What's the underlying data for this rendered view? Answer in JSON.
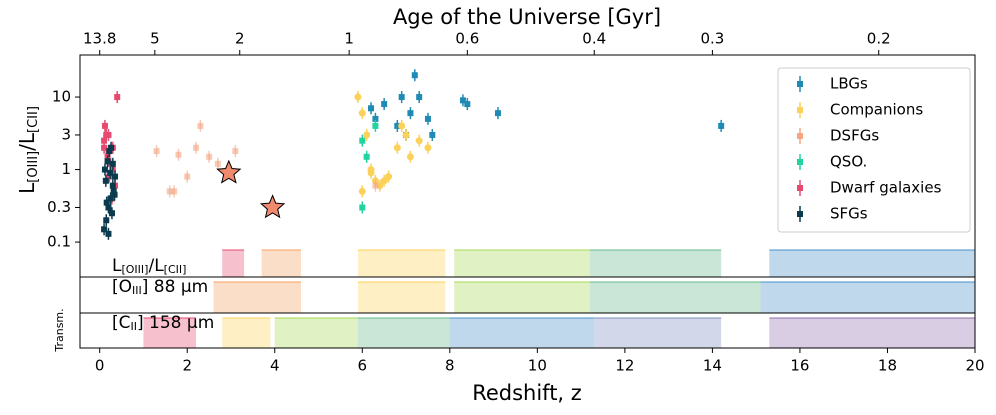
{
  "chart_data": {
    "type": "scatter",
    "title": "Age of the Universe [Gyr]",
    "x_label": "Redshift, z",
    "y_label": [
      "L",
      "[OIII]",
      "/L",
      "[CII]"
    ],
    "transmission_label": "Transm.",
    "xlim": [
      -0.45,
      20
    ],
    "ylim": [
      0.033,
      38
    ],
    "log_y": true,
    "xticks": [
      0,
      2,
      4,
      6,
      8,
      10,
      12,
      14,
      16,
      18,
      20
    ],
    "yticks": [
      0.1,
      0.3,
      1,
      3,
      10
    ],
    "top_ticks": [
      {
        "value": 0,
        "label": "13.8"
      },
      {
        "value": 1.26,
        "label": "5"
      },
      {
        "value": 3.2,
        "label": "2"
      },
      {
        "value": 5.7,
        "label": "1"
      },
      {
        "value": 8.4,
        "label": "0.6"
      },
      {
        "value": 11.3,
        "label": "0.4"
      },
      {
        "value": 14.0,
        "label": "0.3"
      },
      {
        "value": 17.8,
        "label": "0.2"
      }
    ],
    "legend": "upper right",
    "series": [
      {
        "name": "LBGs",
        "color": "#1f8bb4",
        "marker": "square",
        "x": [
          6.3,
          6.5,
          6.9,
          7.1,
          7.2,
          7.3,
          7.5,
          7.6,
          8.3,
          8.4,
          9.1,
          14.2,
          6.2,
          6.8,
          7.0
        ],
        "values": [
          5,
          8,
          10,
          6,
          20,
          10,
          5,
          3,
          9,
          8,
          6,
          4,
          7,
          4,
          3
        ]
      },
      {
        "name": "Companions",
        "color": "#fcd15a",
        "marker": "circle",
        "x": [
          5.9,
          6.0,
          6.1,
          6.2,
          6.3,
          6.4,
          6.6,
          6.8,
          7.0,
          7.1,
          7.3,
          7.5,
          6.0,
          6.2,
          6.5,
          6.9
        ],
        "values": [
          10,
          6,
          3,
          1,
          0.7,
          0.6,
          0.8,
          2,
          3,
          1.5,
          2.5,
          2,
          0.5,
          0.9,
          0.7,
          4
        ]
      },
      {
        "name": "DSFGs",
        "color": "#f4a582",
        "marker": "square",
        "x": [
          1.3,
          1.8,
          2.0,
          1.7,
          2.3,
          2.5,
          1.6,
          2.2,
          3.1,
          2.7,
          6.3
        ],
        "values": [
          1.8,
          1.6,
          0.8,
          0.5,
          4,
          1.5,
          0.5,
          2,
          1.8,
          1.2,
          0.6
        ]
      },
      {
        "name": "QSO.",
        "color": "#20d3a0",
        "marker": "square",
        "x": [
          6.0,
          6.1,
          6.0,
          6.3
        ],
        "values": [
          2.5,
          1.5,
          0.3,
          4
        ]
      },
      {
        "name": "Dwarf galaxies",
        "color": "#e84a6f",
        "marker": "square",
        "x": [
          0.1,
          0.15,
          0.2,
          0.25,
          0.3,
          0.35,
          0.4,
          0.12,
          0.18,
          0.22,
          0.28,
          0.1,
          0.3,
          0.2
        ],
        "values": [
          2.5,
          3,
          1.8,
          1.2,
          2,
          0.6,
          10,
          4,
          1.5,
          0.8,
          0.4,
          2,
          1,
          3
        ]
      },
      {
        "name": "SFGs",
        "color": "#0b3a4e",
        "marker": "square",
        "x": [
          0.1,
          0.15,
          0.2,
          0.25,
          0.3,
          0.35,
          0.12,
          0.18,
          0.22,
          0.28,
          0.32,
          0.14,
          0.24,
          0.3,
          0.2,
          0.16,
          0.26,
          0.34
        ],
        "values": [
          0.15,
          0.2,
          0.3,
          0.4,
          0.6,
          0.8,
          1,
          1.3,
          1.8,
          0.25,
          0.5,
          0.7,
          0.9,
          1.2,
          0.13,
          0.35,
          2,
          0.45
        ]
      },
      {
        "color": "#f08a6e",
        "marker": "star",
        "x": [
          2.95,
          3.95
        ],
        "values": [
          0.9,
          0.3
        ]
      }
    ],
    "rows": [
      {
        "label": [
          "L",
          "[OIII]",
          "/L",
          "[CII]"
        ],
        "bands": [
          {
            "start": 2.8,
            "end": 3.3,
            "color": "#e84a6f"
          },
          {
            "start": 3.7,
            "end": 4.6,
            "color": "#f4a060"
          },
          {
            "start": 5.9,
            "end": 7.9,
            "color": "#fcd15a"
          },
          {
            "start": 8.1,
            "end": 11.2,
            "color": "#a6d854"
          },
          {
            "start": 11.2,
            "end": 14.2,
            "color": "#66b88a"
          },
          {
            "start": 15.3,
            "end": 20,
            "color": "#4a90c8"
          }
        ]
      },
      {
        "label": [
          "[O",
          "III",
          "] 88 μm"
        ],
        "bands": [
          {
            "start": 2.6,
            "end": 4.6,
            "color": "#f4a060"
          },
          {
            "start": 5.9,
            "end": 7.9,
            "color": "#fcd15a"
          },
          {
            "start": 8.1,
            "end": 11.2,
            "color": "#a6d854"
          },
          {
            "start": 11.2,
            "end": 15.1,
            "color": "#66b88a"
          },
          {
            "start": 15.1,
            "end": 20,
            "color": "#4a90c8"
          }
        ]
      },
      {
        "label": [
          "[C",
          "II",
          "] 158 μm"
        ],
        "bands": [
          {
            "start": 1.0,
            "end": 2.2,
            "color": "#e84a6f"
          },
          {
            "start": 2.8,
            "end": 3.9,
            "color": "#fcd15a"
          },
          {
            "start": 4.0,
            "end": 5.9,
            "color": "#a6d854"
          },
          {
            "start": 5.9,
            "end": 8.0,
            "color": "#66b88a"
          },
          {
            "start": 8.0,
            "end": 11.3,
            "color": "#4a90c8"
          },
          {
            "start": 11.3,
            "end": 14.2,
            "color": "#7f8fbf"
          },
          {
            "start": 15.3,
            "end": 20,
            "color": "#8e6fae"
          }
        ]
      }
    ]
  }
}
